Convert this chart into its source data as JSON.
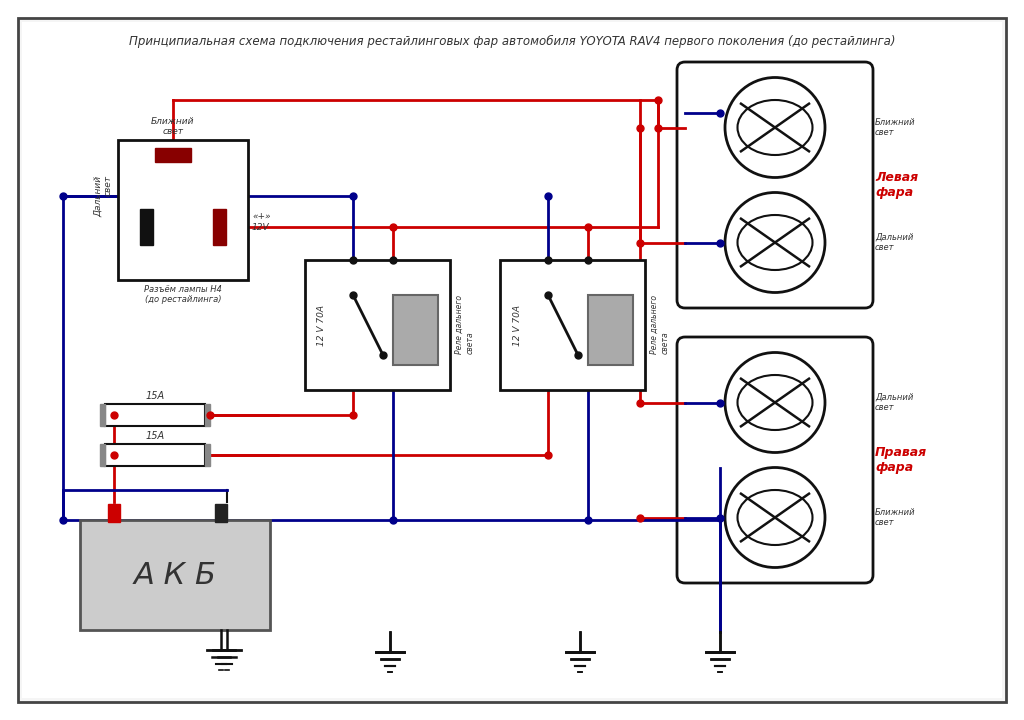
{
  "title": "Принципиальная схема подключения рестайлинговых фар автомобиля YOYOTA RAV4 первого поколения (до рестайлинга)",
  "bg_color": "#ffffff",
  "border_color": "#444444",
  "red_wire": "#cc0000",
  "blue_wire": "#00008b",
  "black_wire": "#111111",
  "relay_label": "12 V 70А",
  "relay_sublabel": "Реле дальнего\nсвета",
  "fuse_label": "15А",
  "battery_label": "А К Б",
  "left_headlight_label": "Левая\nфара",
  "right_headlight_label": "Правая\nфара",
  "near_light": "Ближний\nсвет",
  "far_light": "Дальний\nсвет",
  "h4_label": "Разъём лампы H4\n(до рестайлинга)",
  "h4_near": "Ближний\nсвет",
  "h4_far": "Дальний\nсвет",
  "h4_12v": "«+»\n12V"
}
